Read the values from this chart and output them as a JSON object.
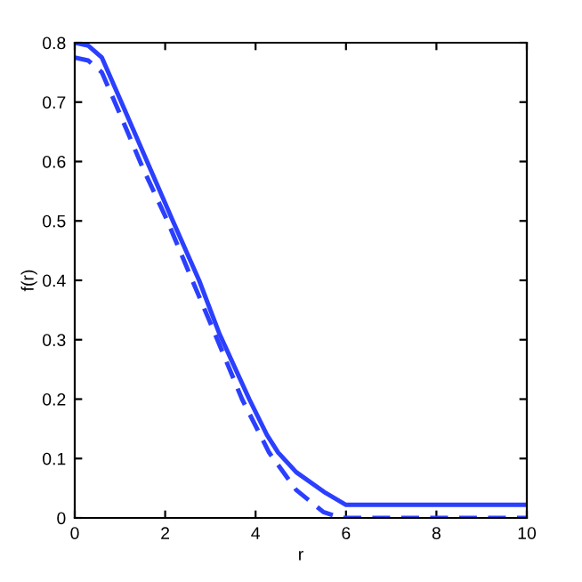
{
  "chart_data": {
    "type": "line",
    "xlabel": "r",
    "ylabel": "f(r)",
    "xlim": [
      0,
      10
    ],
    "ylim": [
      0,
      0.8
    ],
    "xticks": [
      0,
      2,
      4,
      6,
      8,
      10
    ],
    "yticks": [
      0,
      0.1,
      0.2,
      0.3,
      0.4,
      0.5,
      0.6,
      0.7,
      0.8
    ],
    "grid": false,
    "marker": "none",
    "series": [
      {
        "color": "#2b3fff",
        "line_style": "solid",
        "x": [
          0,
          0.3,
          0.6,
          1.03,
          1.6,
          2.17,
          2.75,
          3.2,
          3.86,
          4.25,
          4.5,
          4.9,
          5.55,
          6.0,
          10
        ],
        "values": [
          0.8,
          0.795,
          0.775,
          0.7,
          0.6,
          0.5,
          0.4,
          0.31,
          0.2,
          0.14,
          0.11,
          0.077,
          0.042,
          0.022,
          0.022
        ]
      },
      {
        "color": "#2b3fff",
        "line_style": "dashed",
        "x": [
          0,
          0.3,
          0.6,
          1.0,
          1.5,
          2.05,
          2.6,
          3.1,
          3.7,
          4.3,
          4.9,
          5.5,
          5.9,
          10
        ],
        "values": [
          0.775,
          0.77,
          0.75,
          0.68,
          0.59,
          0.5,
          0.4,
          0.31,
          0.2,
          0.11,
          0.047,
          0.01,
          0,
          0
        ]
      }
    ]
  }
}
